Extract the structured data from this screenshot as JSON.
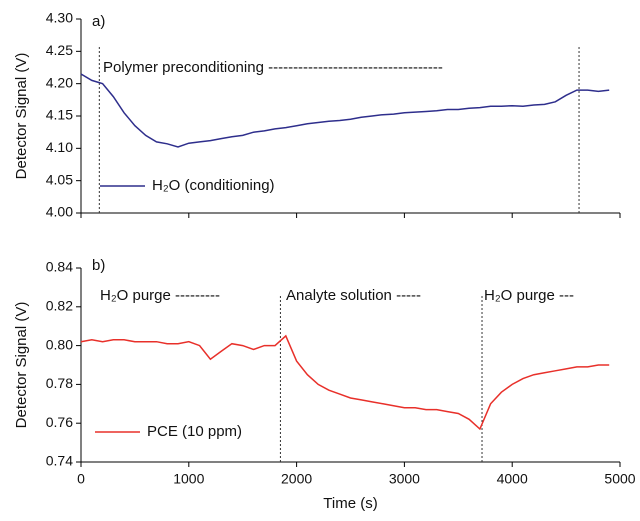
{
  "chart_data": [
    {
      "type": "line",
      "panel_label": "a)",
      "ylabel": "Detector Signal (V)",
      "annotations": [
        "Polymer preconditioning -----------------------------------"
      ],
      "vlines": [
        170,
        4620
      ],
      "xlim": [
        0,
        5000
      ],
      "xticks": [
        0,
        1000,
        2000,
        3000,
        4000,
        5000
      ],
      "ylim": [
        4.0,
        4.3
      ],
      "yticks": [
        {
          "value": 4.0,
          "label": "4.00"
        },
        4.05,
        {
          "value": 4.1,
          "label": "4.10"
        },
        4.15,
        {
          "value": 4.2,
          "label": "4.20"
        },
        4.25,
        {
          "value": 4.3,
          "label": "4.30"
        }
      ],
      "x": [
        0,
        100,
        200,
        300,
        400,
        500,
        600,
        700,
        800,
        900,
        1000,
        1100,
        1200,
        1300,
        1400,
        1500,
        1600,
        1700,
        1800,
        1900,
        2000,
        2100,
        2200,
        2300,
        2400,
        2500,
        2600,
        2700,
        2800,
        2900,
        3000,
        3100,
        3200,
        3300,
        3400,
        3500,
        3600,
        3700,
        3800,
        3900,
        4000,
        4100,
        4200,
        4300,
        4400,
        4500,
        4600,
        4700,
        4800,
        4900
      ],
      "series": [
        {
          "name": "H₂O (conditioning)",
          "color": "#2e2e8c",
          "values": [
            4.215,
            4.205,
            4.2,
            4.18,
            4.155,
            4.135,
            4.12,
            4.11,
            4.107,
            4.102,
            4.108,
            4.11,
            4.112,
            4.115,
            4.118,
            4.12,
            4.125,
            4.127,
            4.13,
            4.132,
            4.135,
            4.138,
            4.14,
            4.142,
            4.143,
            4.145,
            4.148,
            4.15,
            4.152,
            4.153,
            4.155,
            4.156,
            4.157,
            4.158,
            4.16,
            4.16,
            4.162,
            4.163,
            4.165,
            4.165,
            4.166,
            4.165,
            4.167,
            4.168,
            4.172,
            4.182,
            4.19,
            4.19,
            4.188,
            4.19
          ]
        }
      ]
    },
    {
      "type": "line",
      "panel_label": "b)",
      "ylabel": "Detector Signal (V)",
      "xlabel": "Time (s)",
      "annotations": [
        "H₂O purge ---------",
        "Analyte solution -----",
        "H₂O purge ---"
      ],
      "vlines": [
        1850,
        3720
      ],
      "xlim": [
        0,
        5000
      ],
      "xticks": [
        0,
        1000,
        2000,
        3000,
        4000,
        5000
      ],
      "ylim": [
        0.74,
        0.84
      ],
      "yticks": [
        0.74,
        0.76,
        0.78,
        {
          "value": 0.8,
          "label": "0.80"
        },
        0.82,
        0.84
      ],
      "x": [
        0,
        100,
        200,
        300,
        400,
        500,
        600,
        700,
        800,
        900,
        1000,
        1100,
        1200,
        1300,
        1400,
        1500,
        1600,
        1700,
        1800,
        1900,
        2000,
        2100,
        2200,
        2300,
        2400,
        2500,
        2600,
        2700,
        2800,
        2900,
        3000,
        3100,
        3200,
        3300,
        3400,
        3500,
        3600,
        3700,
        3800,
        3900,
        4000,
        4100,
        4200,
        4300,
        4400,
        4500,
        4600,
        4700,
        4800,
        4900
      ],
      "series": [
        {
          "name": "PCE (10 ppm)",
          "color": "#e8302a",
          "values": [
            0.802,
            0.803,
            0.802,
            0.803,
            0.803,
            0.802,
            0.802,
            0.802,
            0.801,
            0.801,
            0.802,
            0.8,
            0.793,
            0.797,
            0.801,
            0.8,
            0.798,
            0.8,
            0.8,
            0.805,
            0.792,
            0.785,
            0.78,
            0.777,
            0.775,
            0.773,
            0.772,
            0.771,
            0.77,
            0.769,
            0.768,
            0.768,
            0.767,
            0.767,
            0.766,
            0.765,
            0.762,
            0.757,
            0.77,
            0.776,
            0.78,
            0.783,
            0.785,
            0.786,
            0.787,
            0.788,
            0.789,
            0.789,
            0.79,
            0.79
          ]
        }
      ]
    }
  ]
}
